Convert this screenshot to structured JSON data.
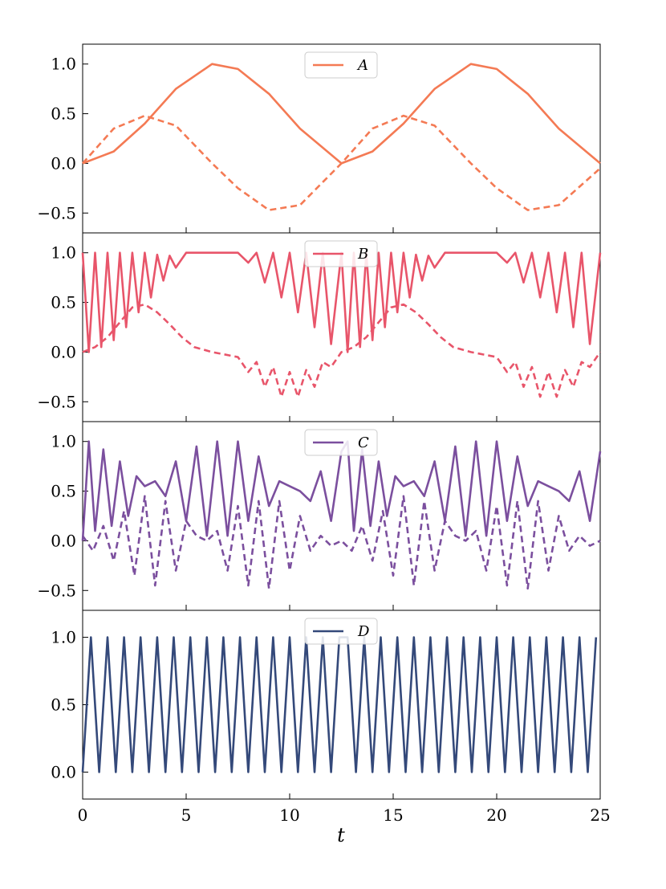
{
  "chart_data": [
    {
      "type": "line",
      "panel": "A",
      "color": "#f47a54",
      "xlim": [
        0,
        25
      ],
      "ylim": [
        -0.7,
        1.2
      ],
      "yticks": [
        -0.5,
        0.0,
        0.5,
        1.0
      ],
      "ytick_labels": [
        "−0.5",
        "0.0",
        "0.5",
        "1.0"
      ],
      "legend": {
        "placement": "top-center",
        "entries": [
          "A"
        ]
      },
      "series": [
        {
          "name": "A",
          "style": "solid",
          "x": [
            0,
            1.5,
            3.0,
            4.5,
            6.25,
            7.5,
            9.0,
            10.5,
            12.5,
            14.0,
            15.5,
            17.0,
            18.75,
            20.0,
            21.5,
            23.0,
            25.0
          ],
          "values": [
            0.0,
            0.12,
            0.4,
            0.75,
            1.0,
            0.95,
            0.7,
            0.35,
            0.0,
            0.12,
            0.4,
            0.75,
            1.0,
            0.95,
            0.7,
            0.35,
            0.0
          ]
        },
        {
          "name": "",
          "style": "dashed",
          "x": [
            0,
            1.5,
            3.0,
            4.5,
            6.25,
            7.5,
            9.0,
            10.5,
            12.5,
            14.0,
            15.5,
            17.0,
            18.75,
            20.0,
            21.5,
            23.0,
            25.0
          ],
          "values": [
            0.0,
            0.35,
            0.48,
            0.38,
            0.0,
            -0.25,
            -0.47,
            -0.42,
            0.0,
            0.35,
            0.48,
            0.38,
            0.0,
            -0.25,
            -0.47,
            -0.42,
            -0.05
          ]
        }
      ]
    },
    {
      "type": "line",
      "panel": "B",
      "color": "#e8556a",
      "xlim": [
        0,
        25
      ],
      "ylim": [
        -0.7,
        1.2
      ],
      "yticks": [
        -0.5,
        0.0,
        0.5,
        1.0
      ],
      "ytick_labels": [
        "−0.5",
        "0.0",
        "0.5",
        "1.0"
      ],
      "legend": {
        "placement": "top-center",
        "entries": [
          "B"
        ]
      },
      "series": [
        {
          "name": "B",
          "style": "solid",
          "x": [
            0,
            0.3,
            0.6,
            0.9,
            1.2,
            1.5,
            1.8,
            2.1,
            2.4,
            2.7,
            3.0,
            3.3,
            3.6,
            3.9,
            4.2,
            4.5,
            5.0,
            6.25,
            7.5,
            8.0,
            8.4,
            8.8,
            9.2,
            9.6,
            10.0,
            10.4,
            10.8,
            11.2,
            11.6,
            12.0,
            12.5
          ],
          "values": [
            1.0,
            0.0,
            1.0,
            0.05,
            1.0,
            0.12,
            1.0,
            0.25,
            1.0,
            0.4,
            1.0,
            0.55,
            0.98,
            0.72,
            0.97,
            0.85,
            1.0,
            1.0,
            1.0,
            0.9,
            1.0,
            0.7,
            1.0,
            0.55,
            1.0,
            0.4,
            1.0,
            0.25,
            1.0,
            0.08,
            1.0
          ]
        },
        {
          "name": "",
          "style": "dashed",
          "x": [
            0,
            0.6,
            1.2,
            1.8,
            2.4,
            3.0,
            3.6,
            4.2,
            4.8,
            5.4,
            6.25,
            7.5,
            8.0,
            8.4,
            8.8,
            9.2,
            9.6,
            10.0,
            10.4,
            10.8,
            11.2,
            11.6,
            12.0,
            12.5
          ],
          "values": [
            0.0,
            0.05,
            0.15,
            0.3,
            0.45,
            0.48,
            0.4,
            0.28,
            0.15,
            0.05,
            0.0,
            -0.05,
            -0.2,
            -0.1,
            -0.35,
            -0.15,
            -0.45,
            -0.2,
            -0.45,
            -0.18,
            -0.35,
            -0.1,
            -0.15,
            0.0
          ]
        }
      ]
    },
    {
      "type": "line",
      "panel": "C",
      "color": "#7b4f9e",
      "xlim": [
        0,
        25
      ],
      "ylim": [
        -0.7,
        1.2
      ],
      "yticks": [
        -0.5,
        0.0,
        0.5,
        1.0
      ],
      "ytick_labels": [
        "−0.5",
        "0.0",
        "0.5",
        "1.0"
      ],
      "legend": {
        "placement": "top-center",
        "entries": [
          "C"
        ]
      },
      "series": [
        {
          "name": "C",
          "style": "solid",
          "x": [
            0,
            0.3,
            0.6,
            1.0,
            1.4,
            1.8,
            2.2,
            2.6,
            3.0,
            3.5,
            4.0,
            4.5,
            5.0,
            5.5,
            6.0,
            6.5,
            7.0,
            7.5,
            8.0,
            8.5,
            9.0,
            9.5,
            10.0,
            10.5,
            11.0,
            11.5,
            12.0,
            12.5
          ],
          "values": [
            0.0,
            1.0,
            0.1,
            0.92,
            0.15,
            0.8,
            0.25,
            0.65,
            0.55,
            0.6,
            0.45,
            0.8,
            0.2,
            0.95,
            0.05,
            1.0,
            0.05,
            1.0,
            0.2,
            0.85,
            0.35,
            0.6,
            0.55,
            0.5,
            0.4,
            0.7,
            0.2,
            0.9
          ]
        },
        {
          "name": "",
          "style": "dashed",
          "x": [
            0,
            0.5,
            1.0,
            1.5,
            2.0,
            2.5,
            3.0,
            3.5,
            4.0,
            4.5,
            5.0,
            5.5,
            6.0,
            6.5,
            7.0,
            7.5,
            8.0,
            8.5,
            9.0,
            9.5,
            10.0,
            10.5,
            11.0,
            11.5,
            12.0,
            12.5
          ],
          "values": [
            0.05,
            -0.1,
            0.15,
            -0.2,
            0.3,
            -0.35,
            0.45,
            -0.45,
            0.4,
            -0.3,
            0.2,
            0.05,
            0.0,
            0.1,
            -0.3,
            0.35,
            -0.45,
            0.4,
            -0.48,
            0.4,
            -0.3,
            0.25,
            -0.1,
            0.05,
            -0.05,
            0.0
          ]
        }
      ]
    },
    {
      "type": "line",
      "panel": "D",
      "color": "#34497a",
      "xlim": [
        0,
        25
      ],
      "ylim": [
        -0.2,
        1.2
      ],
      "yticks": [
        0.0,
        0.5,
        1.0
      ],
      "ytick_labels": [
        "0.0",
        "0.5",
        "1.0"
      ],
      "legend": {
        "placement": "top-center",
        "entries": [
          "D"
        ]
      },
      "series": [
        {
          "name": "D",
          "style": "solid",
          "x": [
            0,
            0.4,
            0.8,
            1.2,
            1.6,
            2.0,
            2.4,
            2.8,
            3.2,
            3.6,
            4.0,
            4.4,
            4.8,
            5.2,
            5.6,
            6.0,
            6.4,
            6.8,
            7.2,
            7.6,
            8.0,
            8.4,
            8.8,
            9.2,
            9.6,
            10.0,
            10.4,
            10.8,
            11.2,
            11.6,
            12.0,
            12.4
          ],
          "values": [
            0.0,
            1.0,
            0.0,
            1.0,
            0.0,
            1.0,
            0.0,
            1.0,
            0.0,
            1.0,
            0.0,
            1.0,
            0.0,
            1.0,
            0.0,
            1.0,
            0.0,
            1.0,
            0.0,
            1.0,
            0.0,
            1.0,
            0.0,
            1.0,
            0.0,
            1.0,
            0.0,
            1.0,
            0.0,
            1.0,
            0.0,
            1.0
          ]
        }
      ]
    }
  ],
  "shared_x": {
    "xlabel": "t",
    "xticks": [
      0,
      5,
      10,
      15,
      20,
      25
    ],
    "xtick_labels": [
      "0",
      "5",
      "10",
      "15",
      "20",
      "25"
    ]
  }
}
